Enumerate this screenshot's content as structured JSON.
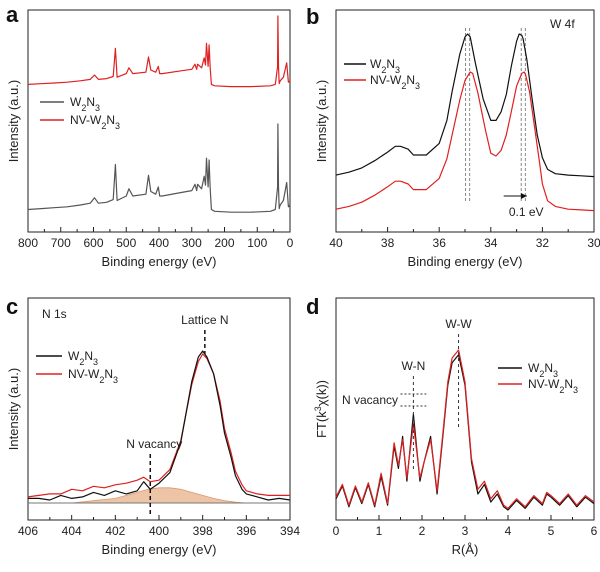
{
  "chart_data": [
    {
      "panel": "a",
      "type": "line",
      "title": "",
      "xlabel": "Binding energy (eV)",
      "ylabel": "Intensity (a.u.)",
      "xlim": [
        800,
        0
      ],
      "xticks": [
        800,
        700,
        600,
        500,
        400,
        300,
        200,
        100,
        0
      ],
      "legend": [
        "W2N3",
        "NV-W2N3"
      ],
      "series": [
        {
          "name": "NV-W2N3",
          "color": "#e02020",
          "x": [
            800,
            760,
            720,
            680,
            640,
            610,
            597,
            585,
            560,
            540,
            533,
            528,
            500,
            492,
            480,
            440,
            432,
            425,
            410,
            402,
            398,
            390,
            330,
            300,
            290,
            285,
            282,
            270,
            262,
            258,
            255,
            250,
            247,
            244,
            240,
            230,
            180,
            120,
            60,
            45,
            38,
            37,
            35,
            33,
            30,
            20,
            10,
            5,
            0
          ],
          "y": [
            0.05,
            0.06,
            0.07,
            0.08,
            0.1,
            0.12,
            0.18,
            0.12,
            0.13,
            0.16,
            0.55,
            0.15,
            0.2,
            0.28,
            0.2,
            0.22,
            0.43,
            0.25,
            0.22,
            0.3,
            0.2,
            0.2,
            0.24,
            0.26,
            0.33,
            0.26,
            0.33,
            0.28,
            0.42,
            0.32,
            0.62,
            0.3,
            0.6,
            0.3,
            0.05,
            0.03,
            0.02,
            0.02,
            0.03,
            0.05,
            0.3,
            1.0,
            0.3,
            0.06,
            0.1,
            0.15,
            0.35,
            0.08,
            0.1
          ]
        },
        {
          "name": "W2N3",
          "color": "#555555",
          "x": [
            800,
            760,
            720,
            680,
            640,
            610,
            597,
            585,
            560,
            540,
            533,
            528,
            500,
            492,
            480,
            440,
            432,
            425,
            410,
            402,
            398,
            390,
            330,
            300,
            290,
            285,
            282,
            270,
            262,
            258,
            255,
            250,
            247,
            244,
            240,
            230,
            180,
            120,
            60,
            45,
            38,
            37,
            35,
            33,
            30,
            20,
            10,
            5,
            0
          ],
          "y": [
            0.05,
            0.06,
            0.07,
            0.08,
            0.1,
            0.12,
            0.18,
            0.12,
            0.13,
            0.16,
            0.55,
            0.15,
            0.2,
            0.28,
            0.2,
            0.22,
            0.43,
            0.25,
            0.22,
            0.3,
            0.2,
            0.2,
            0.24,
            0.26,
            0.33,
            0.26,
            0.33,
            0.28,
            0.42,
            0.32,
            0.62,
            0.3,
            0.6,
            0.3,
            0.05,
            0.03,
            0.02,
            0.02,
            0.03,
            0.05,
            0.3,
            1.0,
            0.3,
            0.06,
            0.1,
            0.15,
            0.35,
            0.08,
            0.1
          ]
        }
      ]
    },
    {
      "panel": "b",
      "type": "line",
      "title": "W 4f",
      "xlabel": "Binding energy (eV)",
      "ylabel": "Intensity (a.u.)",
      "xlim": [
        40,
        30
      ],
      "xticks": [
        40,
        38,
        36,
        34,
        32,
        30
      ],
      "legend": [
        "W2N3",
        "NV-W2N3"
      ],
      "annotations": [
        "0.1 eV"
      ],
      "peak_positions": {
        "W2N3": [
          34.9,
          32.75
        ],
        "NV-W2N3": [
          34.8,
          32.65
        ]
      },
      "series": [
        {
          "name": "W2N3",
          "color": "#111111",
          "x": [
            40,
            39.5,
            39,
            38.5,
            38,
            37.7,
            37.5,
            37.2,
            37,
            36.5,
            36,
            35.7,
            35.5,
            35.2,
            35,
            34.9,
            34.8,
            34.6,
            34.3,
            34,
            33.8,
            33.6,
            33.4,
            33.2,
            33,
            32.9,
            32.8,
            32.75,
            32.6,
            32.4,
            32.2,
            32,
            31.8,
            31.5,
            31,
            30.5,
            30
          ],
          "y": [
            0.02,
            0.04,
            0.07,
            0.12,
            0.18,
            0.22,
            0.22,
            0.2,
            0.16,
            0.16,
            0.24,
            0.4,
            0.6,
            0.86,
            0.98,
            1.0,
            0.98,
            0.8,
            0.55,
            0.4,
            0.4,
            0.46,
            0.58,
            0.78,
            0.95,
            1.0,
            0.99,
            0.97,
            0.82,
            0.55,
            0.3,
            0.14,
            0.06,
            0.03,
            0.02,
            0.015,
            0.01
          ]
        },
        {
          "name": "NV-W2N3",
          "color": "#e02020",
          "x": [
            40,
            39.5,
            39,
            38.5,
            38,
            37.7,
            37.5,
            37.2,
            37,
            36.5,
            36,
            35.7,
            35.5,
            35.2,
            35,
            34.8,
            34.7,
            34.5,
            34.2,
            34,
            33.8,
            33.6,
            33.4,
            33.2,
            33,
            32.8,
            32.7,
            32.65,
            32.5,
            32.3,
            32.1,
            32,
            31.8,
            31.5,
            31,
            30.5,
            30
          ],
          "y": [
            0.02,
            0.04,
            0.07,
            0.12,
            0.18,
            0.22,
            0.22,
            0.2,
            0.16,
            0.16,
            0.24,
            0.38,
            0.55,
            0.8,
            0.94,
            1.0,
            0.99,
            0.85,
            0.58,
            0.42,
            0.4,
            0.44,
            0.55,
            0.72,
            0.9,
            0.99,
            1.0,
            0.98,
            0.86,
            0.6,
            0.34,
            0.2,
            0.08,
            0.04,
            0.02,
            0.015,
            0.01
          ]
        }
      ]
    },
    {
      "panel": "c",
      "type": "line",
      "title": "N 1s",
      "xlabel": "Binding energy (eV)",
      "ylabel": "Intensity (a.u.)",
      "xlim": [
        406,
        394
      ],
      "xticks": [
        406,
        404,
        402,
        400,
        398,
        396,
        394
      ],
      "legend": [
        "W2N3",
        "NV-W2N3"
      ],
      "annotations": [
        "Lattice N",
        "N vacancy"
      ],
      "markers": {
        "lattice_N": 397.9,
        "N_vacancy": 400.4
      },
      "series": [
        {
          "name": "W2N3",
          "color": "#111111",
          "x": [
            406,
            405.5,
            405,
            404.5,
            404,
            403.5,
            403,
            402.5,
            402,
            401.5,
            401,
            400.7,
            400.4,
            400,
            399.5,
            399,
            398.8,
            398.5,
            398.2,
            398,
            397.8,
            397.5,
            397.2,
            397,
            396.7,
            396.5,
            396.2,
            396,
            395.5,
            395,
            394.5,
            394
          ],
          "y": [
            0.03,
            0.03,
            0.02,
            0.05,
            0.03,
            0.04,
            0.07,
            0.05,
            0.08,
            0.06,
            0.08,
            0.14,
            0.09,
            0.13,
            0.2,
            0.4,
            0.56,
            0.8,
            0.96,
            1.0,
            0.96,
            0.85,
            0.64,
            0.46,
            0.3,
            0.18,
            0.09,
            0.06,
            0.04,
            0.02,
            0.03,
            0.02
          ]
        },
        {
          "name": "NV-W2N3",
          "color": "#e02020",
          "x": [
            406,
            405.5,
            405,
            404.5,
            404,
            403.5,
            403,
            402.5,
            402,
            401.5,
            401,
            400.7,
            400.4,
            400,
            399.5,
            399,
            398.8,
            398.5,
            398.2,
            398,
            397.8,
            397.5,
            397.2,
            397,
            396.7,
            396.5,
            396.2,
            396,
            395.5,
            395,
            394.5,
            394
          ],
          "y": [
            0.04,
            0.05,
            0.06,
            0.06,
            0.09,
            0.08,
            0.11,
            0.1,
            0.12,
            0.13,
            0.15,
            0.17,
            0.14,
            0.15,
            0.22,
            0.41,
            0.56,
            0.78,
            0.93,
            0.98,
            0.95,
            0.85,
            0.67,
            0.49,
            0.33,
            0.21,
            0.12,
            0.08,
            0.06,
            0.05,
            0.05,
            0.05
          ]
        },
        {
          "name": "N vacancy fit",
          "color": "#e8b08a",
          "fill": true,
          "x": [
            404,
            403,
            402,
            401.5,
            401,
            400.5,
            400,
            399.5,
            399,
            398.5,
            398,
            397.5,
            397,
            396.5,
            396
          ],
          "y": [
            0.0,
            0.015,
            0.03,
            0.05,
            0.07,
            0.09,
            0.1,
            0.1,
            0.09,
            0.07,
            0.05,
            0.03,
            0.015,
            0.005,
            0.0
          ]
        }
      ]
    },
    {
      "panel": "d",
      "type": "line",
      "title": "",
      "xlabel": "R(Å)",
      "ylabel": "FT(k³χ(k))",
      "xlim": [
        0,
        6
      ],
      "xticks": [
        0,
        1,
        2,
        3,
        4,
        5,
        6
      ],
      "legend": [
        "W2N3",
        "NV-W2N3"
      ],
      "annotations": [
        "W-W",
        "W-N",
        "N vacancy"
      ],
      "markers": {
        "W-N": 1.8,
        "W-W": 2.85
      },
      "series": [
        {
          "name": "W2N3",
          "color": "#111111",
          "x": [
            0,
            0.15,
            0.3,
            0.45,
            0.6,
            0.75,
            0.9,
            1.05,
            1.2,
            1.35,
            1.45,
            1.55,
            1.65,
            1.8,
            1.95,
            2.05,
            2.2,
            2.35,
            2.5,
            2.6,
            2.7,
            2.85,
            3.0,
            3.15,
            3.3,
            3.45,
            3.6,
            3.75,
            3.9,
            4.0,
            4.2,
            4.4,
            4.6,
            4.8,
            4.9,
            5.0,
            5.2,
            5.4,
            5.6,
            5.8,
            6.0
          ],
          "y": [
            0.07,
            0.15,
            0.02,
            0.14,
            0.04,
            0.16,
            0.02,
            0.21,
            0.03,
            0.4,
            0.26,
            0.46,
            0.18,
            0.6,
            0.18,
            0.3,
            0.46,
            0.1,
            0.5,
            0.78,
            0.92,
            0.97,
            0.78,
            0.3,
            0.1,
            0.16,
            0.05,
            0.1,
            0.02,
            0.0,
            0.06,
            0.01,
            0.08,
            0.03,
            0.1,
            0.08,
            0.03,
            0.09,
            0.02,
            0.08,
            0.04
          ]
        },
        {
          "name": "NV-W2N3",
          "color": "#e02020",
          "x": [
            0,
            0.15,
            0.3,
            0.45,
            0.6,
            0.75,
            0.9,
            1.05,
            1.2,
            1.35,
            1.45,
            1.55,
            1.65,
            1.8,
            1.95,
            2.05,
            2.2,
            2.35,
            2.5,
            2.6,
            2.7,
            2.85,
            3.0,
            3.15,
            3.3,
            3.45,
            3.6,
            3.75,
            3.9,
            4.0,
            4.2,
            4.4,
            4.6,
            4.8,
            4.9,
            5.0,
            5.2,
            5.4,
            5.6,
            5.8,
            6.0
          ],
          "y": [
            0.08,
            0.16,
            0.03,
            0.15,
            0.05,
            0.17,
            0.03,
            0.23,
            0.04,
            0.42,
            0.28,
            0.44,
            0.2,
            0.54,
            0.2,
            0.3,
            0.44,
            0.12,
            0.52,
            0.8,
            0.95,
            1.0,
            0.8,
            0.32,
            0.13,
            0.18,
            0.07,
            0.12,
            0.03,
            0.01,
            0.07,
            0.02,
            0.09,
            0.04,
            0.11,
            0.09,
            0.04,
            0.1,
            0.03,
            0.09,
            0.05
          ]
        }
      ]
    }
  ],
  "legend_text": {
    "w2n3": "W2N3",
    "nv": "NV-W2N3"
  }
}
